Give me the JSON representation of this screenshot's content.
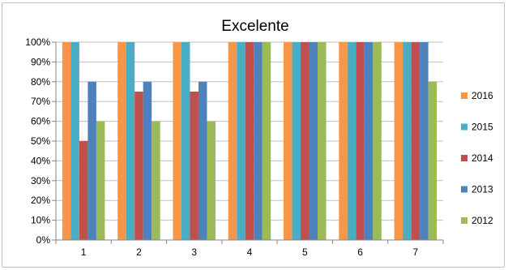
{
  "chart_data": {
    "type": "bar",
    "title": "Excelente",
    "categories": [
      "1",
      "2",
      "3",
      "4",
      "5",
      "6",
      "7"
    ],
    "ylim": [
      0,
      100
    ],
    "y_ticks": [
      "0%",
      "10%",
      "20%",
      "30%",
      "40%",
      "50%",
      "60%",
      "70%",
      "80%",
      "90%",
      "100%"
    ],
    "y_unit": "%",
    "grid": true,
    "legend_position": "right",
    "series": [
      {
        "name": "2016",
        "color": "#F79646",
        "values": [
          100,
          100,
          100,
          100,
          100,
          100,
          100
        ]
      },
      {
        "name": "2015",
        "color": "#4BACC6",
        "values": [
          100,
          100,
          100,
          100,
          100,
          100,
          100
        ]
      },
      {
        "name": "2014",
        "color": "#C0504D",
        "values": [
          50,
          75,
          75,
          100,
          100,
          100,
          100
        ]
      },
      {
        "name": "2013",
        "color": "#4F81BD",
        "values": [
          80,
          80,
          80,
          100,
          100,
          100,
          100
        ]
      },
      {
        "name": "2012",
        "color": "#9BBB59",
        "values": [
          60,
          60,
          60,
          100,
          100,
          100,
          80
        ]
      }
    ]
  }
}
